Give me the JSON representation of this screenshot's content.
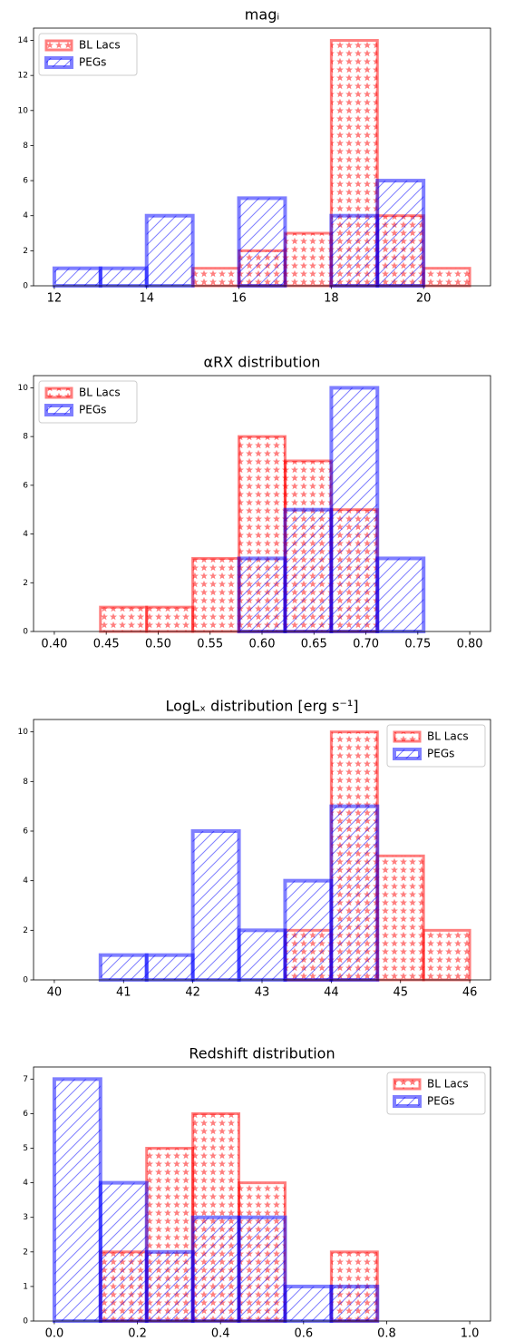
{
  "chart_data": [
    {
      "type": "histogram",
      "title": "magᵢ",
      "legend": "upper left",
      "bins": [
        12,
        13,
        14,
        15,
        16,
        17,
        18,
        19,
        20,
        21
      ],
      "series": [
        {
          "name": "BL Lacs",
          "color": "red",
          "values": [
            0,
            0,
            0,
            1,
            2,
            3,
            14,
            4,
            1
          ]
        },
        {
          "name": "PEGs",
          "color": "blue",
          "values": [
            1,
            1,
            4,
            0,
            5,
            0,
            4,
            6,
            0
          ]
        }
      ],
      "xlim": [
        11.55,
        21.45
      ],
      "ylim": [
        0,
        14.7
      ],
      "xticks": [
        12,
        14,
        16,
        18,
        20
      ],
      "yticks": [
        0,
        2,
        4,
        6,
        8,
        10,
        12,
        14
      ]
    },
    {
      "type": "histogram",
      "title": "αRX distribution",
      "legend": "upper left",
      "bins": [
        0.4,
        0.4444,
        0.4889,
        0.5333,
        0.5778,
        0.6222,
        0.6667,
        0.7111,
        0.7556,
        0.8
      ],
      "series": [
        {
          "name": "BL Lacs",
          "color": "red",
          "values": [
            0,
            1,
            1,
            3,
            8,
            7,
            5,
            0,
            0
          ]
        },
        {
          "name": "PEGs",
          "color": "blue",
          "values": [
            0,
            0,
            0,
            0,
            3,
            5,
            10,
            3,
            0
          ]
        }
      ],
      "xlim": [
        0.38,
        0.82
      ],
      "ylim": [
        0,
        10.5
      ],
      "xticks": [
        {
          "value": 0.4,
          "label": "0.40"
        },
        0.45,
        {
          "value": 0.5,
          "label": "0.50"
        },
        0.55,
        {
          "value": 0.6,
          "label": "0.60"
        },
        0.65,
        {
          "value": 0.7,
          "label": "0.70"
        },
        0.75,
        {
          "value": 0.8,
          "label": "0.80"
        }
      ],
      "yticks": [
        0,
        2,
        4,
        6,
        8,
        10
      ]
    },
    {
      "type": "histogram",
      "title": "LogLₓ distribution [erg s⁻¹]",
      "legend": "upper right",
      "bins": [
        40,
        40.667,
        41.333,
        42,
        42.667,
        43.333,
        44,
        44.667,
        45.333,
        46
      ],
      "series": [
        {
          "name": "BL Lacs",
          "color": "red",
          "values": [
            0,
            0,
            0,
            0,
            0,
            2,
            10,
            5,
            2
          ]
        },
        {
          "name": "PEGs",
          "color": "blue",
          "values": [
            0,
            1,
            1,
            6,
            2,
            4,
            7,
            0,
            0
          ]
        }
      ],
      "xlim": [
        39.7,
        46.3
      ],
      "ylim": [
        0,
        10.5
      ],
      "xticks": [
        40,
        41,
        42,
        43,
        44,
        45,
        46
      ],
      "yticks": [
        0,
        2,
        4,
        6,
        8,
        10
      ]
    },
    {
      "type": "histogram",
      "title": "Redshift distribution",
      "legend": "upper right",
      "bins": [
        0,
        0.1111,
        0.2222,
        0.3333,
        0.4444,
        0.5556,
        0.6667,
        0.7778,
        0.8889,
        1
      ],
      "series": [
        {
          "name": "BL Lacs",
          "color": "red",
          "values": [
            0,
            2,
            5,
            6,
            4,
            0,
            2,
            0,
            0
          ]
        },
        {
          "name": "PEGs",
          "color": "blue",
          "values": [
            7,
            4,
            2,
            3,
            3,
            1,
            1,
            0,
            0
          ]
        }
      ],
      "xlim": [
        -0.05,
        1.05
      ],
      "ylim": [
        0,
        7.35
      ],
      "xticks": [
        {
          "value": 0,
          "label": "0.0"
        },
        0.2,
        0.4,
        0.6,
        0.8,
        {
          "value": 1,
          "label": "1.0"
        }
      ],
      "yticks": [
        0,
        1,
        2,
        3,
        4,
        5,
        6,
        7
      ]
    }
  ]
}
